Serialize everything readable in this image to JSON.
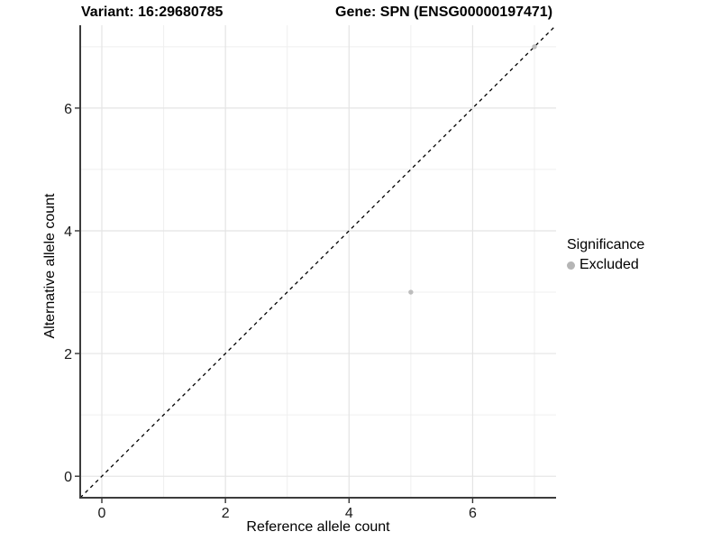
{
  "chart_data": {
    "type": "scatter",
    "title_left": "Variant: 16:29680785",
    "title_right": "Gene: SPN (ENSG00000197471)",
    "xlabel": "Reference allele count",
    "ylabel": "Alternative allele count",
    "xlim": [
      -0.35,
      7.35
    ],
    "ylim": [
      -0.35,
      7.35
    ],
    "xticks": [
      0,
      2,
      4,
      6
    ],
    "yticks": [
      0,
      2,
      4,
      6
    ],
    "minor_xticks": [
      1,
      3,
      5,
      7
    ],
    "minor_yticks": [
      1,
      3,
      5,
      7
    ],
    "grid": true,
    "identity_line": {
      "style": "dashed",
      "slope": 1,
      "intercept": 0,
      "from": [
        -0.35,
        -0.35
      ],
      "to": [
        7.35,
        7.35
      ],
      "color": "#000000"
    },
    "series": [
      {
        "name": "Excluded",
        "color": "#bdbdbd",
        "points": [
          [
            5,
            3
          ],
          [
            7,
            7
          ]
        ]
      }
    ],
    "legend": {
      "title": "Significance",
      "position": "right",
      "items": [
        {
          "label": "Excluded",
          "color": "#b5b5b5"
        }
      ]
    },
    "colors": {
      "axis_line": "#3c3c3c",
      "tick_mark": "#333333",
      "tick_label": "#1a1a1a",
      "grid_major": "#e4e4e4",
      "grid_minor": "#efefef",
      "background": "#ffffff"
    }
  }
}
